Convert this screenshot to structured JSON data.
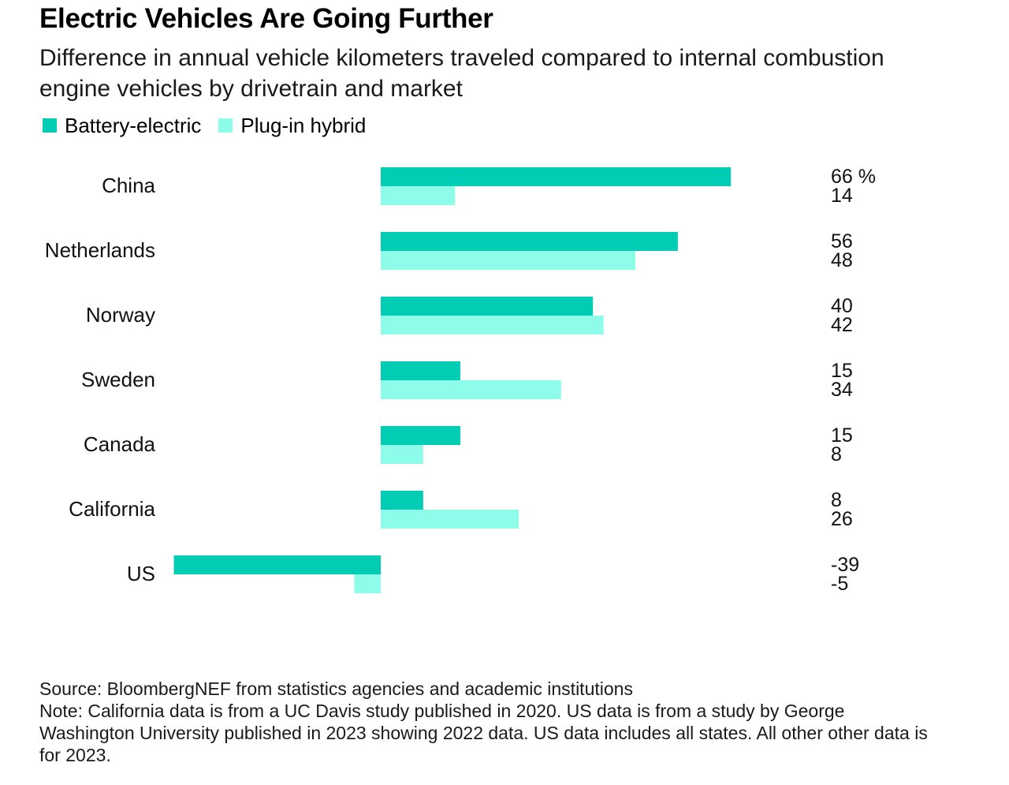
{
  "header": {
    "title": "Electric Vehicles Are Going Further",
    "subtitle": "Difference in annual vehicle kilometers traveled compared to internal combustion engine vehicles by drivetrain and market"
  },
  "legend": [
    {
      "name": "Battery-electric",
      "color": "#00cdb4"
    },
    {
      "name": "Plug-in hybrid",
      "color": "#8dfde9"
    }
  ],
  "chart_data": {
    "type": "bar",
    "orientation": "horizontal",
    "categories": [
      "China",
      "Netherlands",
      "Norway",
      "Sweden",
      "Canada",
      "California",
      "US"
    ],
    "series": [
      {
        "name": "Battery-electric",
        "color": "#00cdb4",
        "values": [
          66,
          56,
          40,
          15,
          15,
          8,
          -39
        ]
      },
      {
        "name": "Plug-in hybrid",
        "color": "#8dfde9",
        "values": [
          14,
          48,
          42,
          34,
          8,
          26,
          -5
        ]
      }
    ],
    "value_unit_suffix": " %",
    "xlim": [
      -39,
      66
    ],
    "grid": false,
    "legend_position": "top-left"
  },
  "footer": {
    "source": "Source: BloombergNEF from statistics agencies and academic institutions",
    "note": "Note: California data is from a UC Davis study published in 2020. US data is from a study by George Washington University published in 2023 showing 2022 data. US data includes all states. All other other data is for 2023."
  }
}
